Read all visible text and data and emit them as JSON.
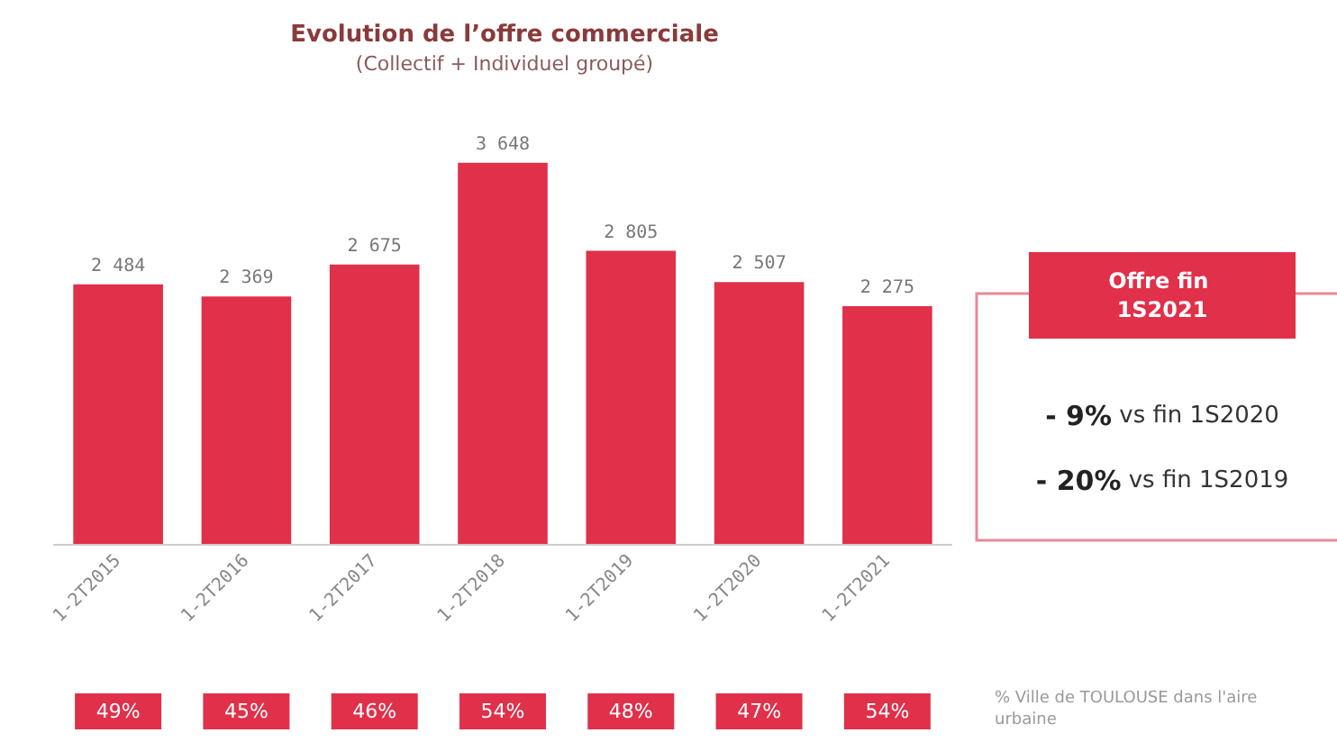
{
  "chart_data": {
    "type": "bar",
    "title": "Evolution de l’offre commerciale",
    "subtitle": "(Collectif + Individuel groupé)",
    "categories": [
      "1-2T2015",
      "1-2T2016",
      "1-2T2017",
      "1-2T2018",
      "1-2T2019",
      "1-2T2020",
      "1-2T2021"
    ],
    "values": [
      2484,
      2369,
      2675,
      3648,
      2805,
      2507,
      2275
    ],
    "value_labels": [
      "2 484",
      "2 369",
      "2 675",
      "3 648",
      "2 805",
      "2 507",
      "2 275"
    ],
    "color": "#e0304a",
    "tick_labels": "x",
    "annotations": [
      "Offre fin 1S2021",
      "- 9% vs fin 1S2020",
      "- 20% vs fin 1S2019",
      "49%",
      "45%",
      "46%",
      "54%",
      "48%",
      "47%",
      "54%",
      "% Ville de TOULOUSE dans l'aire urbaine"
    ]
  }
}
